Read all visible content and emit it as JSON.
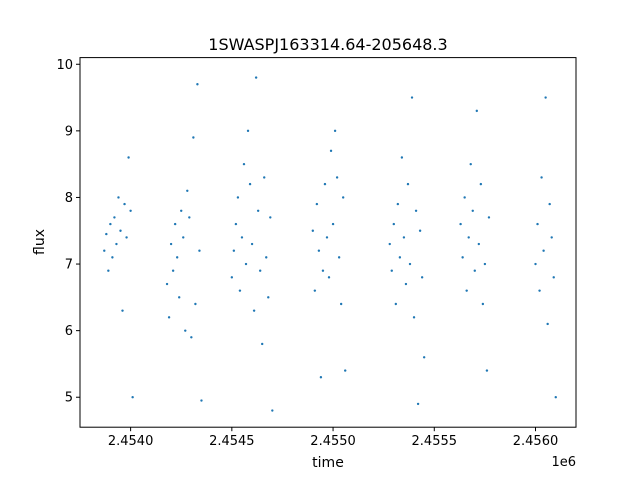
{
  "chart_data": {
    "type": "scatter",
    "title": "1SWASPJ163314.64-205648.3",
    "xlabel": "time",
    "ylabel": "flux",
    "x_offset_label": "1e6",
    "xlim": [
      2.45375,
      2.4562
    ],
    "ylim": [
      4.55,
      10.1
    ],
    "x_ticks": [
      {
        "value": 2.454,
        "label": "2.4540"
      },
      {
        "value": 2.4545,
        "label": "2.4545"
      },
      {
        "value": 2.455,
        "label": "2.4550"
      },
      {
        "value": 2.4555,
        "label": "2.4555"
      },
      {
        "value": 2.456,
        "label": "2.4560"
      }
    ],
    "y_ticks": [
      {
        "value": 5,
        "label": "5"
      },
      {
        "value": 6,
        "label": "6"
      },
      {
        "value": 7,
        "label": "7"
      },
      {
        "value": 8,
        "label": "8"
      },
      {
        "value": 9,
        "label": "9"
      },
      {
        "value": 10,
        "label": "10"
      }
    ],
    "grid": false,
    "marker_color": "#1f77b4",
    "series": [
      {
        "points": [
          [
            2.45387,
            7.2
          ],
          [
            2.45388,
            7.45
          ],
          [
            2.45389,
            6.9
          ],
          [
            2.4539,
            7.6
          ],
          [
            2.45391,
            7.1
          ],
          [
            2.45392,
            7.7
          ],
          [
            2.45393,
            7.3
          ],
          [
            2.45394,
            8.0
          ],
          [
            2.45395,
            7.5
          ],
          [
            2.45396,
            6.3
          ],
          [
            2.45397,
            7.9
          ],
          [
            2.45398,
            7.4
          ],
          [
            2.45399,
            8.6
          ],
          [
            2.454,
            7.8
          ],
          [
            2.45401,
            5.0
          ],
          [
            2.45418,
            6.7
          ],
          [
            2.45419,
            6.2
          ],
          [
            2.4542,
            7.3
          ],
          [
            2.45421,
            6.9
          ],
          [
            2.45422,
            7.6
          ],
          [
            2.45423,
            7.1
          ],
          [
            2.45424,
            6.5
          ],
          [
            2.45425,
            7.8
          ],
          [
            2.45426,
            7.4
          ],
          [
            2.45427,
            6.0
          ],
          [
            2.45428,
            8.1
          ],
          [
            2.45429,
            7.7
          ],
          [
            2.4543,
            5.9
          ],
          [
            2.45431,
            8.9
          ],
          [
            2.45432,
            6.4
          ],
          [
            2.45433,
            9.7
          ],
          [
            2.45434,
            7.2
          ],
          [
            2.45435,
            4.95
          ],
          [
            2.4545,
            6.8
          ],
          [
            2.45451,
            7.2
          ],
          [
            2.45452,
            7.6
          ],
          [
            2.45453,
            8.0
          ],
          [
            2.45454,
            6.6
          ],
          [
            2.45455,
            7.4
          ],
          [
            2.45456,
            8.5
          ],
          [
            2.45457,
            7.0
          ],
          [
            2.45458,
            9.0
          ],
          [
            2.45459,
            8.2
          ],
          [
            2.4546,
            7.3
          ],
          [
            2.45461,
            6.3
          ],
          [
            2.45462,
            9.8
          ],
          [
            2.45463,
            7.8
          ],
          [
            2.45464,
            6.9
          ],
          [
            2.45465,
            5.8
          ],
          [
            2.45466,
            8.3
          ],
          [
            2.45467,
            7.1
          ],
          [
            2.45468,
            6.5
          ],
          [
            2.45469,
            7.7
          ],
          [
            2.4547,
            4.8
          ],
          [
            2.4549,
            7.5
          ],
          [
            2.45491,
            6.6
          ],
          [
            2.45492,
            7.9
          ],
          [
            2.45493,
            7.2
          ],
          [
            2.45494,
            5.3
          ],
          [
            2.45495,
            6.9
          ],
          [
            2.45496,
            8.2
          ],
          [
            2.45497,
            7.4
          ],
          [
            2.45498,
            6.8
          ],
          [
            2.45499,
            8.7
          ],
          [
            2.455,
            7.6
          ],
          [
            2.45501,
            9.0
          ],
          [
            2.45502,
            8.3
          ],
          [
            2.45503,
            7.1
          ],
          [
            2.45504,
            6.4
          ],
          [
            2.45505,
            8.0
          ],
          [
            2.45506,
            5.4
          ],
          [
            2.45528,
            7.3
          ],
          [
            2.45529,
            6.9
          ],
          [
            2.4553,
            7.6
          ],
          [
            2.45531,
            6.4
          ],
          [
            2.45532,
            7.9
          ],
          [
            2.45533,
            7.1
          ],
          [
            2.45534,
            8.6
          ],
          [
            2.45535,
            7.4
          ],
          [
            2.45536,
            6.7
          ],
          [
            2.45537,
            8.2
          ],
          [
            2.45538,
            7.0
          ],
          [
            2.45539,
            9.5
          ],
          [
            2.4554,
            6.2
          ],
          [
            2.45541,
            7.8
          ],
          [
            2.45542,
            4.9
          ],
          [
            2.45543,
            7.5
          ],
          [
            2.45544,
            6.8
          ],
          [
            2.45545,
            5.6
          ],
          [
            2.45563,
            7.6
          ],
          [
            2.45564,
            7.1
          ],
          [
            2.45565,
            8.0
          ],
          [
            2.45566,
            6.6
          ],
          [
            2.45567,
            7.4
          ],
          [
            2.45568,
            8.5
          ],
          [
            2.45569,
            7.8
          ],
          [
            2.4557,
            6.9
          ],
          [
            2.45571,
            9.3
          ],
          [
            2.45572,
            7.3
          ],
          [
            2.45573,
            8.2
          ],
          [
            2.45574,
            6.4
          ],
          [
            2.45575,
            7.0
          ],
          [
            2.45576,
            5.4
          ],
          [
            2.45577,
            7.7
          ],
          [
            2.456,
            7.0
          ],
          [
            2.45601,
            7.6
          ],
          [
            2.45602,
            6.6
          ],
          [
            2.45603,
            8.3
          ],
          [
            2.45604,
            7.2
          ],
          [
            2.45605,
            9.5
          ],
          [
            2.45606,
            6.1
          ],
          [
            2.45607,
            7.9
          ],
          [
            2.45608,
            7.4
          ],
          [
            2.45609,
            6.8
          ],
          [
            2.4561,
            5.0
          ]
        ]
      }
    ]
  }
}
